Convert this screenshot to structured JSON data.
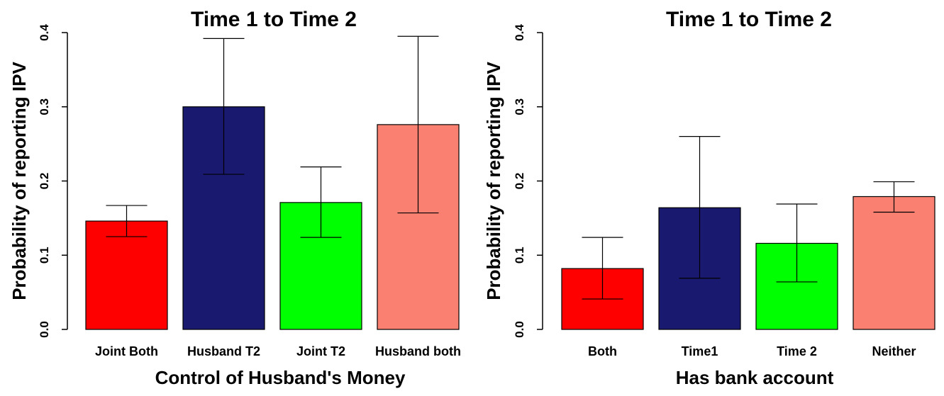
{
  "chart_data": [
    {
      "type": "bar",
      "title": "Time 1 to Time 2",
      "xlabel": "Control of Husband's Money",
      "ylabel": "Probability of reporting IPV",
      "ylim": [
        0,
        0.4
      ],
      "yticks": [
        "0.0",
        "0.1",
        "0.2",
        "0.3",
        "0.4"
      ],
      "grid": false,
      "categories": [
        "Joint Both",
        "Husband T2",
        "Joint T2",
        "Husband both"
      ],
      "values": [
        0.146,
        0.3,
        0.171,
        0.276
      ],
      "error_low": [
        0.125,
        0.209,
        0.124,
        0.157
      ],
      "error_high": [
        0.167,
        0.392,
        0.219,
        0.395
      ],
      "colors": [
        "#ff0000",
        "#191970",
        "#00ff00",
        "#fa8072"
      ]
    },
    {
      "type": "bar",
      "title": "Time 1 to Time 2",
      "xlabel": "Has bank account",
      "ylabel": "Probability of reporting IPV",
      "ylim": [
        0,
        0.4
      ],
      "yticks": [
        "0.0",
        "0.1",
        "0.2",
        "0.3",
        "0.4"
      ],
      "grid": false,
      "categories": [
        "Both",
        "Time1",
        "Time 2",
        "Neither"
      ],
      "values": [
        0.082,
        0.164,
        0.116,
        0.179
      ],
      "error_low": [
        0.041,
        0.069,
        0.064,
        0.158
      ],
      "error_high": [
        0.124,
        0.26,
        0.169,
        0.199
      ],
      "colors": [
        "#ff0000",
        "#191970",
        "#00ff00",
        "#fa8072"
      ]
    }
  ]
}
